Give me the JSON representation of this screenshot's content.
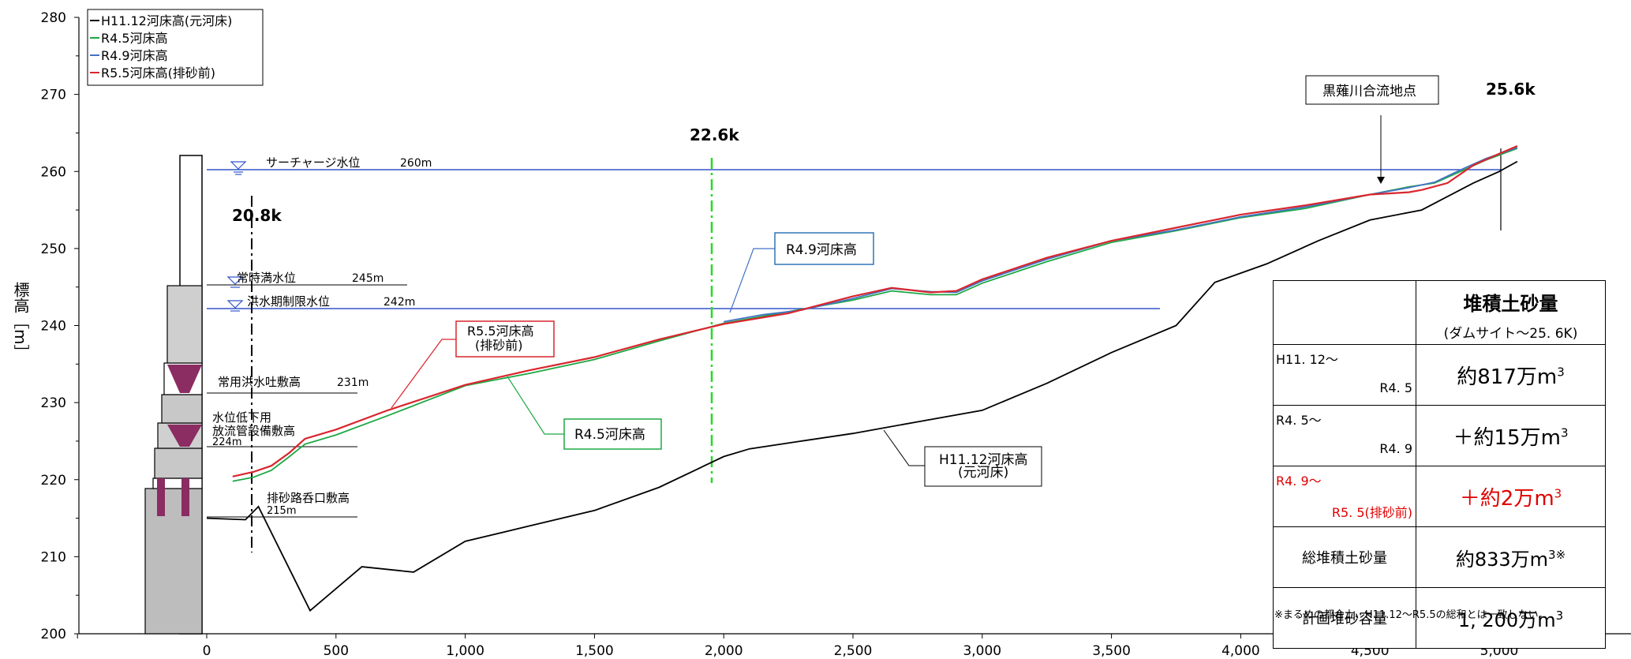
{
  "chart_data": {
    "type": "line",
    "ylabel": "標高［m］",
    "xlim": [
      -500,
      5100
    ],
    "ylim": [
      200,
      280
    ],
    "x_ticks": [
      0,
      500,
      1000,
      1500,
      2000,
      2500,
      3000,
      3500,
      4000,
      4500,
      5000
    ],
    "x_tick_labels": [
      "0",
      "500",
      "1,000",
      "1,500",
      "2,000",
      "2,500",
      "3,000",
      "3,500",
      "4,000",
      "4,500",
      "5,000"
    ],
    "y_ticks": [
      200,
      210,
      220,
      230,
      240,
      250,
      260,
      270,
      280
    ],
    "legend": "top-left",
    "series": [
      {
        "name": "H11.12河床高(元河床)",
        "color": "#000000",
        "x": [
          0,
          150,
          200,
          400,
          600,
          800,
          1000,
          1250,
          1500,
          1750,
          2000,
          2100,
          2300,
          2500,
          2750,
          3000,
          3250,
          3500,
          3750,
          3900,
          4100,
          4300,
          4500,
          4700,
          4900,
          5000,
          5070
        ],
        "y": [
          215,
          214.8,
          216.5,
          203,
          208.7,
          208,
          212,
          214,
          216,
          219,
          223,
          224,
          225,
          226,
          227.5,
          229,
          232.5,
          236.5,
          240,
          245.6,
          248,
          251,
          253.7,
          255,
          258.5,
          260,
          261.3
        ]
      },
      {
        "name": "R4.5河床高",
        "color": "#1ea845",
        "x": [
          100,
          180,
          250,
          320,
          380,
          500,
          700,
          1000,
          1250,
          1500,
          1750,
          2000,
          2250,
          2500,
          2650,
          2800,
          2900,
          3000,
          3250,
          3500,
          3750,
          4000,
          4250,
          4500,
          4650,
          4750,
          4850,
          4950,
          5070
        ],
        "y": [
          219.8,
          220.3,
          221.2,
          223,
          224.6,
          225.8,
          228.3,
          232.2,
          233.8,
          235.6,
          238,
          240.3,
          241.8,
          243.3,
          244.5,
          244,
          244,
          245.5,
          248.3,
          250.8,
          252.3,
          254,
          255.2,
          257,
          258,
          258.5,
          260,
          261.5,
          263
        ]
      },
      {
        "name": "R4.9河床高",
        "color": "#4472c4",
        "x": [
          2000,
          2150,
          2300,
          2500,
          2650,
          2800,
          2900,
          3000,
          3250,
          3500,
          3750,
          4000,
          4250,
          4500,
          4650,
          4750,
          4850,
          4950,
          5070
        ],
        "y": [
          240.5,
          241.4,
          242,
          243.5,
          244.8,
          244.4,
          244.3,
          245.8,
          248.6,
          251,
          252.4,
          254.1,
          255.4,
          257,
          257.9,
          258.6,
          260.2,
          261.7,
          263.1
        ]
      },
      {
        "name": "R5.5河床高(排砂前)",
        "color": "#d9262e",
        "x": [
          100,
          180,
          250,
          320,
          380,
          500,
          700,
          1000,
          1250,
          1500,
          1750,
          2000,
          2250,
          2500,
          2650,
          2800,
          2900,
          3000,
          3250,
          3500,
          3750,
          4000,
          4250,
          4500,
          4650,
          4700,
          4800,
          4900,
          5000,
          5070
        ],
        "y": [
          220.4,
          221,
          221.8,
          223.5,
          225.3,
          226.5,
          229,
          232.3,
          234.2,
          235.9,
          238.2,
          240.2,
          241.6,
          243.8,
          244.9,
          244.3,
          244.5,
          246,
          248.8,
          251,
          252.7,
          254.4,
          255.6,
          257,
          257.3,
          257.6,
          258.5,
          260.8,
          262.3,
          263.3
        ]
      }
    ],
    "annotations": {
      "surcharge": "サーチャージ水位",
      "surcharge_val": "260m",
      "normal": "常時満水位",
      "normal_val": "245m",
      "flood": "洪水期制限水位",
      "flood_val": "242m",
      "spill": "常用洪水吐敷高",
      "spill_val": "231m",
      "outlet1": "水位低下用",
      "outlet2": "放流管設備敷高",
      "outlet_val": "224m",
      "sediment1": "排砂路呑口敷高",
      "sediment_val": "215m",
      "k208": "20.8k",
      "k226": "22.6k",
      "k256": "25.6k",
      "confluence": "黒薙川合流地点",
      "callout_r49": "R4.9河床高",
      "callout_r55_1": "R5.5河床高",
      "callout_r55_2": "(排砂前)",
      "callout_r45": "R4.5河床高",
      "callout_h11_1": "H11.12河床高",
      "callout_h11_2": "(元河床)"
    }
  },
  "table": {
    "header_title": "堆積土砂量",
    "header_sub": "(ダムサイト～25. 6K)",
    "rows": [
      {
        "from": "H11. 12～",
        "to": "R4. 5",
        "value": "約817万m",
        "sup": "3",
        "red": false
      },
      {
        "from": "R4. 5～",
        "to": "R4. 9",
        "value": "＋約15万m",
        "sup": "3",
        "red": false
      },
      {
        "from": "R4. 9～",
        "to": "R5. 5(排砂前)",
        "value": "＋約2万m",
        "sup": "3",
        "red": true
      }
    ],
    "total_label": "総堆積土砂量",
    "total_value": "約833万m",
    "total_sup": "3※",
    "plan_label": "計画堆砂容量",
    "plan_value": "1, 200万m",
    "plan_sup": "3"
  },
  "note": "※まるめの都合上、H11.12～R5.5の総和とは一致しない。"
}
